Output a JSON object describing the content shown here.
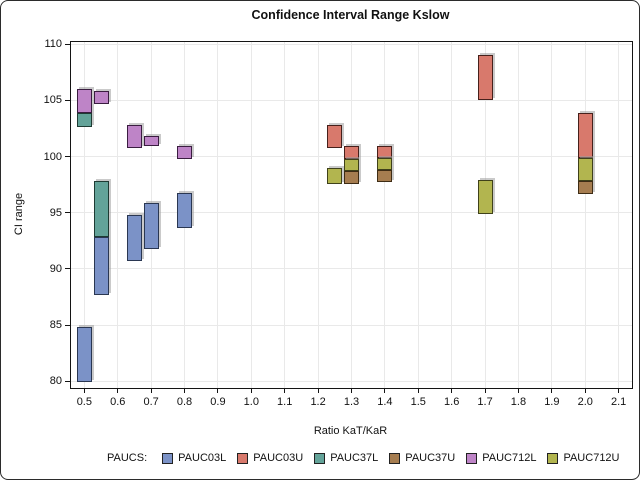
{
  "title": "Confidence Interval Range Kslow",
  "x_axis": {
    "label": "Ratio KaT/KaR",
    "tick_labels": [
      "0.5",
      "0.6",
      "0.7",
      "0.8",
      "0.9",
      "1.0",
      "1.1",
      "1.2",
      "1.3",
      "1.4",
      "1.5",
      "1.6",
      "1.7",
      "1.8",
      "1.9",
      "2.0",
      "2.1"
    ],
    "min": 0.46,
    "max": 2.14
  },
  "y_axis": {
    "label": "CI range",
    "tick_labels": [
      "80",
      "85",
      "90",
      "95",
      "100",
      "105",
      "110"
    ],
    "min": 79.4,
    "max": 110.2
  },
  "legend": {
    "title": "PAUCS:",
    "entries": [
      {
        "label": "PAUC03L",
        "color": "#7b92c7",
        "border": "#2a3752"
      },
      {
        "label": "PAUC03U",
        "color": "#d8796c",
        "border": "#46201b"
      },
      {
        "label": "PAUC37L",
        "color": "#63a399",
        "border": "#1e3b33"
      },
      {
        "label": "PAUC37U",
        "color": "#a67d50",
        "border": "#3e2c15"
      },
      {
        "label": "PAUC712L",
        "color": "#be84c7",
        "border": "#3a1d40"
      },
      {
        "label": "PAUC712U",
        "color": "#b2b54f",
        "border": "#3f411a"
      }
    ]
  },
  "chart_data": {
    "type": "bar",
    "subtype": "floating-interval-hiloc",
    "title": "Confidence Interval Range Kslow",
    "xlabel": "Ratio KaT/KaR",
    "ylabel": "CI range",
    "xlim": [
      0.46,
      2.14
    ],
    "ylim": [
      79.4,
      110.2
    ],
    "x_ticks": [
      0.5,
      0.6,
      0.7,
      0.8,
      0.9,
      1.0,
      1.1,
      1.2,
      1.3,
      1.4,
      1.5,
      1.6,
      1.7,
      1.8,
      1.9,
      2.0,
      2.1
    ],
    "y_ticks": [
      80,
      85,
      90,
      95,
      100,
      105,
      110
    ],
    "grid": true,
    "legend_position": "bottom",
    "series": [
      {
        "name": "PAUC03L",
        "color": "#7b92c7",
        "border": "#2a3752",
        "points": [
          {
            "x": 0.5,
            "low": 79.9,
            "high": 84.8
          },
          {
            "x": 0.55,
            "low": 87.7,
            "high": 92.8
          },
          {
            "x": 0.65,
            "low": 90.7,
            "high": 94.8
          },
          {
            "x": 0.7,
            "low": 91.8,
            "high": 95.9
          },
          {
            "x": 0.8,
            "low": 93.6,
            "high": 96.8
          }
        ]
      },
      {
        "name": "PAUC03U",
        "color": "#d8796c",
        "border": "#46201b",
        "points": [
          {
            "x": 1.25,
            "low": 100.8,
            "high": 102.8
          },
          {
            "x": 1.3,
            "low": 99.8,
            "high": 100.9
          },
          {
            "x": 1.4,
            "low": 99.9,
            "high": 100.9
          },
          {
            "x": 1.7,
            "low": 105.0,
            "high": 109.0
          },
          {
            "x": 2.0,
            "low": 99.9,
            "high": 103.9
          }
        ]
      },
      {
        "name": "PAUC37L",
        "color": "#63a399",
        "border": "#1e3b33",
        "points": [
          {
            "x": 0.5,
            "low": 102.6,
            "high": 103.9
          },
          {
            "x": 0.55,
            "low": 92.8,
            "high": 97.8
          }
        ]
      },
      {
        "name": "PAUC37U",
        "color": "#a67d50",
        "border": "#3e2c15",
        "points": [
          {
            "x": 1.3,
            "low": 97.6,
            "high": 98.7
          },
          {
            "x": 1.4,
            "low": 97.7,
            "high": 98.8
          },
          {
            "x": 2.0,
            "low": 96.7,
            "high": 97.8
          }
        ]
      },
      {
        "name": "PAUC712L",
        "color": "#be84c7",
        "border": "#3a1d40",
        "points": [
          {
            "x": 0.5,
            "low": 103.9,
            "high": 106.0
          },
          {
            "x": 0.55,
            "low": 104.7,
            "high": 105.8
          },
          {
            "x": 0.65,
            "low": 100.8,
            "high": 102.8
          },
          {
            "x": 0.7,
            "low": 100.9,
            "high": 101.8
          },
          {
            "x": 0.8,
            "low": 99.8,
            "high": 100.9
          }
        ]
      },
      {
        "name": "PAUC712U",
        "color": "#b2b54f",
        "border": "#3f411a",
        "points": [
          {
            "x": 1.25,
            "low": 97.6,
            "high": 99.0
          },
          {
            "x": 1.3,
            "low": 98.7,
            "high": 99.8
          },
          {
            "x": 1.4,
            "low": 98.8,
            "high": 99.9
          },
          {
            "x": 1.7,
            "low": 94.9,
            "high": 97.9
          },
          {
            "x": 2.0,
            "low": 97.8,
            "high": 99.9
          }
        ]
      }
    ]
  }
}
